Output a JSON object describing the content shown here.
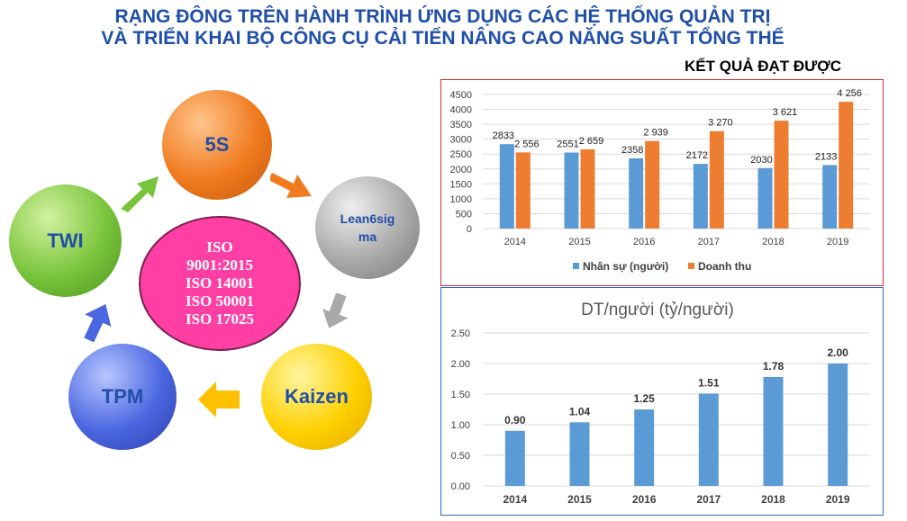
{
  "header": {
    "title_line1": "RẠNG ĐÔNG TRÊN HÀNH TRÌNH ỨNG DỤNG CÁC HỆ THỐNG QUẢN TRỊ",
    "title_line2": "VÀ TRIỂN KHAI BỘ CÔNG CỤ CẢI TIẾN NÂNG CAO NĂNG SUẤT TỔNG THỂ",
    "results_label": "KẾT QUẢ ĐẠT ĐƯỢC"
  },
  "cycle": {
    "nodes": {
      "s5": "5S",
      "lean_line1": "Lean6sig",
      "lean_line2": "ma",
      "kaizen": "Kaizen",
      "tpm": "TPM",
      "twi": "TWI"
    },
    "center_lines": [
      "ISO",
      "9001:2015",
      "ISO 14001",
      "ISO 50001",
      "ISO 17025"
    ],
    "arrow_colors": [
      "#f07a1e",
      "#a9a9a9",
      "#ffc000",
      "#4a66e0",
      "#78c43a"
    ]
  },
  "chart_data": [
    {
      "type": "bar",
      "categories": [
        "2014",
        "2015",
        "2016",
        "2017",
        "2018",
        "2019"
      ],
      "series": [
        {
          "name": "Nhân sự (người)",
          "values": [
            2833,
            2551,
            2358,
            2172,
            2030,
            2133
          ],
          "labels": [
            "2833",
            "2551",
            "2358",
            "2172",
            "2030",
            "2133"
          ],
          "color": "#5b9bd5"
        },
        {
          "name": "Doanh thu",
          "values": [
            2556,
            2659,
            2939,
            3270,
            3621,
            4256
          ],
          "labels": [
            "2 556",
            "2 659",
            "2 939",
            "3 270",
            "3 621",
            "4 256"
          ],
          "color": "#ed7d31"
        }
      ],
      "yticks": [
        "0",
        "500",
        "1000",
        "1500",
        "2000",
        "2500",
        "3000",
        "3500",
        "4000",
        "4500"
      ],
      "ylim": [
        0,
        4500
      ],
      "grid": true,
      "legend": "bottom",
      "title": "",
      "xlabel": "",
      "ylabel": ""
    },
    {
      "type": "bar",
      "title": "DT/người (tỷ/người)",
      "categories": [
        "2014",
        "2015",
        "2016",
        "2017",
        "2018",
        "2019"
      ],
      "values": [
        0.9,
        1.04,
        1.25,
        1.51,
        1.78,
        2.0
      ],
      "labels": [
        "0.90",
        "1.04",
        "1.25",
        "1.51",
        "1.78",
        "2.00"
      ],
      "yticks": [
        "0.00",
        "0.50",
        "1.00",
        "1.50",
        "2.00",
        "2.50"
      ],
      "ylim": [
        0,
        2.5
      ],
      "grid": true,
      "color": "#5b9bd5",
      "xlabel": "",
      "ylabel": ""
    }
  ]
}
